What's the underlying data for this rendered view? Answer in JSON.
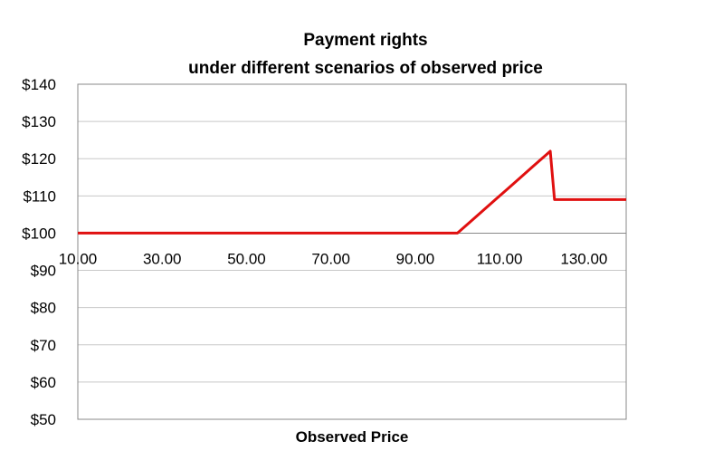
{
  "chart_data": {
    "type": "line",
    "title": [
      "Payment rights",
      "under different scenarios of observed price"
    ],
    "xlabel": "Observed Price",
    "ylabel": "",
    "xlim": [
      10,
      140
    ],
    "ylim": [
      50,
      140
    ],
    "y_ticks": [
      140,
      130,
      120,
      110,
      100,
      90,
      80,
      70,
      60,
      50
    ],
    "y_tick_labels": [
      "$140",
      "$130",
      "$120",
      "$110",
      "$100",
      "$90",
      "$80",
      "$70",
      "$60",
      "$50"
    ],
    "x_ticks": [
      10,
      30,
      50,
      70,
      90,
      110,
      130
    ],
    "x_tick_labels": [
      "10.00",
      "30.00",
      "50.00",
      "70.00",
      "90.00",
      "110.00",
      "130.00"
    ],
    "x_axis_crosses_at": 100,
    "grid": true,
    "legend": "none",
    "series": [
      {
        "color": "#e01010",
        "x": [
          10,
          100,
          103,
          106,
          109,
          112,
          115,
          118,
          121,
          122,
          123,
          126,
          130,
          135,
          140
        ],
        "y": [
          100,
          100,
          103,
          106,
          109,
          112,
          115,
          118,
          121,
          122,
          109,
          109,
          109,
          109,
          109
        ]
      }
    ]
  }
}
